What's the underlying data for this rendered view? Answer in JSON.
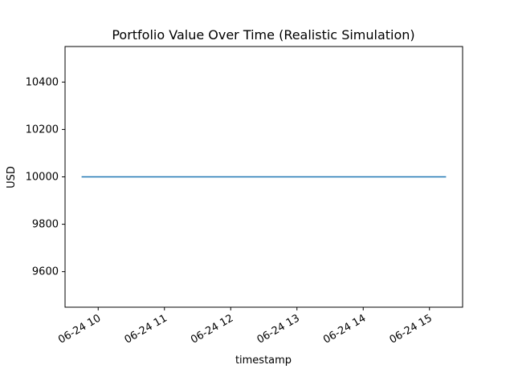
{
  "chart_data": {
    "type": "line",
    "title": "Portfolio Value Over Time (Realistic Simulation)",
    "xlabel": "timestamp",
    "ylabel": "USD",
    "x_range": [
      "06-24 09:45",
      "06-24 15:15"
    ],
    "xlim": [
      "06-24 09:30",
      "06-24 15:30"
    ],
    "ylim": [
      9450,
      10550
    ],
    "x_ticks": [
      "06-24 10",
      "06-24 11",
      "06-24 12",
      "06-24 13",
      "06-24 14",
      "06-24 15"
    ],
    "y_ticks": [
      9600,
      9800,
      10000,
      10200,
      10400
    ],
    "grid": false,
    "series": [
      {
        "color": "#1f77b4",
        "x": [
          "06-24 09:45",
          "06-24 15:15"
        ],
        "y": [
          10000,
          10000
        ]
      }
    ]
  }
}
